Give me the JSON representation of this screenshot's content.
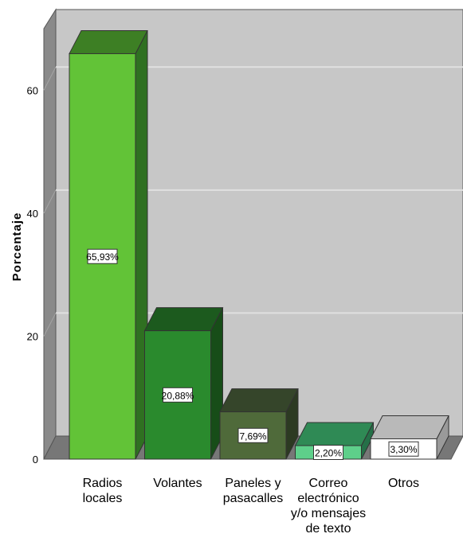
{
  "chart_data": {
    "type": "bar",
    "ylabel": "Porcentaje",
    "ylim": [
      0,
      70
    ],
    "yticks": [
      0,
      20,
      40,
      60
    ],
    "grid": true,
    "categories": [
      [
        "Radios",
        "locales"
      ],
      [
        "Volantes"
      ],
      [
        "Paneles y",
        "pasacalles"
      ],
      [
        "Correo",
        "electrónico",
        "y/o mensajes",
        "de texto"
      ],
      [
        "Otros"
      ]
    ],
    "values": [
      65.93,
      20.88,
      7.69,
      2.2,
      3.3
    ],
    "labels": [
      "65,93%",
      "20,88%",
      "7,69%",
      "2,20%",
      "3,30%"
    ],
    "colors": [
      {
        "front": "#62c337",
        "top": "#3d7f24",
        "side": "#2f7021"
      },
      {
        "front": "#2a8a2d",
        "top": "#1c5a1e",
        "side": "#174d18"
      },
      {
        "front": "#4f6a3a",
        "top": "#35452a",
        "side": "#2c3a22"
      },
      {
        "front": "#5ecf8a",
        "top": "#2f8a55",
        "side": "#257048"
      },
      {
        "front": "#ffffff",
        "top": "#b9b9b9",
        "side": "#9a9a9a"
      }
    ]
  }
}
